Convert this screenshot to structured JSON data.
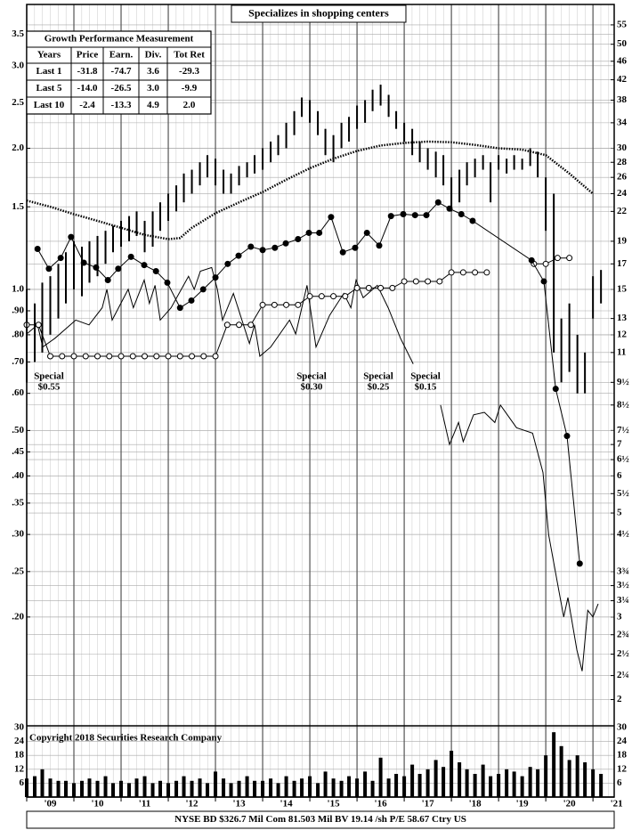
{
  "chart_data": {
    "type": "stock",
    "title": "Specializes in shopping centers",
    "copyright": "Copyright 2018 Securities Research Company",
    "footer": "NYSE BD  $326.7 Mil Com 81.503 Mil BV 19.14 /sh  P/E 58.67 Ctry US",
    "log_scale": true,
    "grid": true,
    "xlim": [
      2009,
      2021.45
    ],
    "xticks": [
      {
        "value": 2009,
        "label": "'09"
      },
      {
        "value": 2010,
        "label": "'10"
      },
      {
        "value": 2011,
        "label": "'11"
      },
      {
        "value": 2012,
        "label": "'12"
      },
      {
        "value": 2013,
        "label": "'13"
      },
      {
        "value": 2014,
        "label": "'14"
      },
      {
        "value": 2015,
        "label": "'15"
      },
      {
        "value": 2016,
        "label": "'16"
      },
      {
        "value": 2017,
        "label": "'17"
      },
      {
        "value": 2018,
        "label": "'18"
      },
      {
        "value": 2019,
        "label": "'19"
      },
      {
        "value": 2020,
        "label": "'20"
      },
      {
        "value": 2021,
        "label": "'21"
      }
    ],
    "ylim": [
      1.758,
      60.8
    ],
    "yticks": [
      55,
      50,
      46,
      42,
      38,
      34,
      30,
      28,
      26,
      24,
      22,
      19,
      17,
      15,
      13,
      12,
      11,
      {
        "value": 9.5,
        "label": "9½"
      },
      {
        "value": 8.5,
        "label": "8½"
      },
      {
        "value": 7.5,
        "label": "7½"
      },
      7,
      {
        "value": 6.5,
        "label": "6½"
      },
      6,
      {
        "value": 5.5,
        "label": "5½"
      },
      5,
      {
        "value": 4.5,
        "label": "4½"
      },
      {
        "value": 3.75,
        "label": "3¾"
      },
      {
        "value": 3.5,
        "label": "3½"
      },
      {
        "value": 3.25,
        "label": "3¼"
      },
      3,
      {
        "value": 2.75,
        "label": "2¾"
      },
      {
        "value": 2.5,
        "label": "2½"
      },
      {
        "value": 2.25,
        "label": "2¼"
      },
      2
    ],
    "y2lim": [
      0.1172,
      4.053
    ],
    "y2ticks": [
      3.5,
      {
        "value": 3,
        "label": "3.0"
      },
      2.5,
      {
        "value": 2,
        "label": "2.0"
      },
      1.5,
      {
        "value": 1,
        "label": "1.0"
      },
      {
        "value": 0.9,
        "label": ".90"
      },
      {
        "value": 0.8,
        "label": ".80"
      },
      {
        "value": 0.7,
        "label": ".70"
      },
      {
        "value": 0.6,
        "label": ".60"
      },
      {
        "value": 0.5,
        "label": ".50"
      },
      {
        "value": 0.45,
        "label": ".45"
      },
      {
        "value": 0.4,
        "label": ".40"
      },
      {
        "value": 0.35,
        "label": ".35"
      },
      {
        "value": 0.3,
        "label": ".30"
      },
      {
        "value": 0.25,
        "label": ".25"
      },
      {
        "value": 0.2,
        "label": ".20"
      }
    ],
    "volume_axis": {
      "ylim": [
        0,
        30
      ],
      "yticks": [
        30,
        24,
        18,
        12,
        6
      ]
    },
    "price": {
      "color": "#000000",
      "x": [
        2009,
        2009.17,
        2009.33,
        2009.5,
        2009.67,
        2009.83,
        2010,
        2010.17,
        2010.33,
        2010.5,
        2010.67,
        2010.83,
        2011,
        2011.17,
        2011.33,
        2011.5,
        2011.67,
        2011.83,
        2012,
        2012.17,
        2012.33,
        2012.5,
        2012.67,
        2012.83,
        2013,
        2013.17,
        2013.33,
        2013.5,
        2013.67,
        2013.83,
        2014,
        2014.17,
        2014.33,
        2014.5,
        2014.67,
        2014.83,
        2015,
        2015.17,
        2015.33,
        2015.5,
        2015.67,
        2015.83,
        2016,
        2016.17,
        2016.33,
        2016.5,
        2016.67,
        2016.83,
        2017,
        2017.17,
        2017.33,
        2017.5,
        2017.67,
        2017.83,
        2018,
        2018.17,
        2018.33,
        2018.5,
        2018.67,
        2018.83,
        2019,
        2019.17,
        2019.33,
        2019.5,
        2019.67,
        2019.83,
        2020,
        2020.17,
        2020.33,
        2020.5,
        2020.67,
        2020.83,
        2021,
        2021.17
      ],
      "high": [
        15,
        14,
        15.5,
        16,
        17,
        18,
        19,
        18.5,
        19,
        19.5,
        20,
        20.5,
        21,
        21.5,
        22,
        21,
        22,
        23,
        24,
        25,
        26.5,
        27,
        28,
        29,
        28.5,
        27,
        26.5,
        27.5,
        28,
        29,
        30,
        31,
        32,
        34,
        36,
        38.5,
        38,
        36,
        33,
        32,
        34,
        35,
        37,
        38,
        40,
        41,
        39,
        36,
        34,
        33,
        31,
        30,
        29.5,
        29,
        26,
        27,
        28,
        28.5,
        29,
        28,
        29,
        28.5,
        29,
        28.5,
        30,
        29.5,
        26,
        24,
        13,
        14,
        12,
        11,
        16,
        16.5
      ],
      "low": [
        9.5,
        10.5,
        11,
        12,
        13,
        14,
        15,
        14.5,
        15.5,
        16,
        17,
        18,
        18.5,
        19,
        19.5,
        18,
        18.5,
        20,
        21,
        22,
        23,
        24,
        25,
        26,
        25,
        24,
        24,
        25,
        26,
        26.5,
        27,
        28,
        29,
        30,
        32,
        35,
        34,
        32,
        29,
        28,
        30,
        31,
        33,
        34,
        36,
        37,
        35,
        33,
        31,
        29,
        28,
        27,
        26,
        25,
        22,
        23,
        25,
        26,
        27,
        23,
        27,
        26.5,
        27,
        27,
        27.5,
        26,
        20,
        11,
        9.5,
        10,
        9,
        9,
        13,
        14
      ],
      "volume": [
        8,
        9,
        12,
        8,
        7,
        7,
        6,
        7,
        8,
        7,
        9,
        6,
        7,
        6,
        8,
        9,
        6,
        7,
        6,
        7,
        9,
        7,
        8,
        6,
        11,
        8,
        6,
        7,
        9,
        7,
        7,
        8,
        6,
        9,
        7,
        8,
        9,
        6,
        11,
        8,
        7,
        9,
        8,
        11,
        7,
        17,
        8,
        10,
        9,
        14,
        10,
        12,
        16,
        13,
        20,
        15,
        12,
        10,
        14,
        9,
        10,
        12,
        11,
        9,
        13,
        12,
        18,
        28,
        22,
        16,
        18,
        15,
        12,
        10
      ]
    },
    "moving_average": {
      "color": "#000000",
      "x": [
        2009,
        2009.5,
        2010,
        2010.5,
        2011,
        2011.5,
        2012,
        2012.25,
        2012.5,
        2013,
        2013.5,
        2014,
        2014.5,
        2015,
        2015.5,
        2016,
        2016.5,
        2017,
        2017.5,
        2018,
        2018.5,
        2019,
        2019.5,
        2020,
        2020.5,
        2021
      ],
      "values": [
        23.2,
        22.5,
        21.7,
        21,
        20.3,
        19.6,
        19.2,
        19.3,
        20.3,
        21.8,
        23,
        24.2,
        25.7,
        27.2,
        28.5,
        29.6,
        30.4,
        30.8,
        31,
        30.9,
        30.5,
        30,
        29.8,
        29,
        26.5,
        24
      ]
    },
    "earnings": {
      "color": "#000000",
      "x": [
        2009.23,
        2009.47,
        2009.72,
        2009.94,
        2010.21,
        2010.47,
        2010.72,
        2010.94,
        2011.21,
        2011.49,
        2011.74,
        2011.98,
        2012.25,
        2012.49,
        2012.74,
        2013,
        2013.26,
        2013.49,
        2013.75,
        2014,
        2014.26,
        2014.49,
        2014.75,
        2014.98,
        2015.2,
        2015.45,
        2015.7,
        2015.96,
        2016.21,
        2016.47,
        2016.72,
        2016.98,
        2017.23,
        2017.47,
        2017.72,
        2017.96,
        2018.21,
        2018.45,
        2019.7,
        2019.96,
        2020.21,
        2020.45,
        2020.72
      ],
      "values": [
        18.3,
        16.6,
        17.5,
        19.4,
        17.1,
        16.7,
        15.7,
        16.6,
        17.6,
        16.9,
        16.4,
        15.5,
        13.7,
        14.2,
        15,
        15.9,
        17,
        17.7,
        18.5,
        18.2,
        18.4,
        18.8,
        19.2,
        19.8,
        19.8,
        21.4,
        18,
        18.4,
        19.8,
        18.6,
        21.5,
        21.7,
        21.6,
        21.6,
        23,
        22.3,
        21.7,
        21,
        17.3,
        15.6,
        9.2,
        7.3,
        3.9
      ]
    },
    "dividends": {
      "color": "#000000",
      "x": [
        2009,
        2009.25,
        2009.5,
        2009.75,
        2010,
        2010.25,
        2010.5,
        2010.75,
        2011,
        2011.25,
        2011.5,
        2011.75,
        2012,
        2012.25,
        2012.5,
        2012.75,
        2013,
        2013.25,
        2013.5,
        2013.75,
        2014,
        2014.25,
        2014.5,
        2014.75,
        2015,
        2015.25,
        2015.5,
        2015.75,
        2016,
        2016.25,
        2016.5,
        2016.75,
        2017,
        2017.25,
        2017.5,
        2017.75,
        2018,
        2018.25,
        2018.5,
        2018.75,
        2019,
        2019.25,
        2019.5,
        2019.75,
        2020,
        2020.25,
        2020.5
      ],
      "values": [
        12.6,
        12.6,
        10.8,
        10.8,
        10.8,
        10.8,
        10.8,
        10.8,
        10.8,
        10.8,
        10.8,
        10.8,
        10.8,
        10.8,
        10.8,
        10.8,
        10.8,
        12.6,
        12.6,
        12.6,
        13.9,
        13.9,
        13.9,
        13.9,
        14.5,
        14.5,
        14.5,
        14.5,
        15.1,
        15.1,
        15.1,
        15.1,
        15.6,
        15.6,
        15.6,
        15.6,
        16.3,
        16.3,
        16.3,
        16.3,
        null,
        null,
        null,
        17,
        17,
        17.5,
        17.5
      ]
    },
    "relative_strength": {
      "color": "#000000",
      "x": [
        2009,
        2009.23,
        2009.34,
        2009.6,
        2010.04,
        2010.32,
        2010.6,
        2010.7,
        2010.81,
        2011.15,
        2011.26,
        2011.49,
        2011.6,
        2011.72,
        2011.83,
        2012.06,
        2012.43,
        2012.55,
        2012.68,
        2012.92,
        2013.04,
        2013.15,
        2013.38,
        2013.72,
        2013.83,
        2013.94,
        2014.17,
        2014.57,
        2014.7,
        2014.94,
        2015.13,
        2015.42,
        2015.72,
        2015.87,
        2015.98,
        2016.13,
        2016.43,
        2016.66,
        2016.92,
        2017.19,
        2017.5,
        2017.77,
        2017.96,
        2018.15,
        2018.25,
        2018.47,
        2018.7,
        2018.92,
        2019.04,
        2019.38,
        2019.72,
        2019.94,
        2020.06,
        2020.28,
        2020.38,
        2020.47,
        2020.66,
        2020.77,
        2020.89,
        2021,
        2021.11
      ],
      "values": [
        12.05,
        12.6,
        11.3,
        11.8,
        12.9,
        12.6,
        13.7,
        15,
        12.9,
        15,
        13.7,
        15.7,
        14,
        15.3,
        12.9,
        13.7,
        16,
        15,
        16.4,
        16.7,
        15,
        12.9,
        14.7,
        11.5,
        12.6,
        10.8,
        11.3,
        12.9,
        12.05,
        15.3,
        11.3,
        13.2,
        14.7,
        13.7,
        15.7,
        14.4,
        15.3,
        13.7,
        11.8,
        10.4,
        null,
        8.5,
        7,
        7.8,
        7.1,
        8.1,
        8.2,
        7.8,
        8.5,
        7.6,
        7.4,
        6.1,
        4.5,
        3.4,
        3,
        3.3,
        2.55,
        2.3,
        3.1,
        3,
        3.2
      ]
    },
    "annotations": [
      {
        "lines": [
          "Special",
          "$0.55"
        ]
      },
      {
        "lines": [
          "Special",
          "$0.30"
        ]
      },
      {
        "lines": [
          "Special",
          "$0.25"
        ]
      },
      {
        "lines": [
          "Special",
          "$0.15"
        ]
      }
    ],
    "table": {
      "title": "Growth Performance Measurement",
      "columns": [
        "Years",
        "Price",
        "Earn.",
        "Div.",
        "Tot Ret"
      ],
      "rows": [
        [
          "Last 1",
          "-31.8",
          "-74.7",
          "3.6",
          "-29.3"
        ],
        [
          "Last 5",
          "-14.0",
          "-26.5",
          "3.0",
          "-9.9"
        ],
        [
          "Last 10",
          "-2.4",
          "-13.3",
          "4.9",
          "2.0"
        ]
      ]
    }
  }
}
